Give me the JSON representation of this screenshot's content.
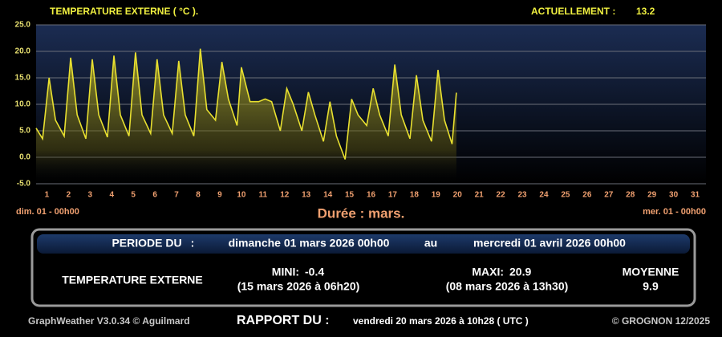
{
  "chart_data": {
    "type": "line",
    "title": "TEMPERATURE EXTERNE ( °C ).",
    "current_label": "ACTUELLEMENT :",
    "current_value": 13.2,
    "x_start_label": "dim. 01 - 00h00",
    "x_end_label": "mer. 01 - 00h00",
    "duration_label": "Durée : mars.",
    "xlim": [
      0,
      31
    ],
    "xticks": [
      {
        "value": 0.5,
        "label": "1"
      },
      {
        "value": 1.5,
        "label": "2"
      },
      {
        "value": 2.5,
        "label": "3"
      },
      {
        "value": 3.5,
        "label": "4"
      },
      {
        "value": 4.5,
        "label": "5"
      },
      {
        "value": 5.5,
        "label": "6"
      },
      {
        "value": 6.5,
        "label": "7"
      },
      {
        "value": 7.5,
        "label": "8"
      },
      {
        "value": 8.5,
        "label": "9"
      },
      {
        "value": 9.5,
        "label": "10"
      },
      {
        "value": 10.5,
        "label": "11"
      },
      {
        "value": 11.5,
        "label": "12"
      },
      {
        "value": 12.5,
        "label": "13"
      },
      {
        "value": 13.5,
        "label": "14"
      },
      {
        "value": 14.5,
        "label": "15"
      },
      {
        "value": 15.5,
        "label": "16"
      },
      {
        "value": 16.5,
        "label": "17"
      },
      {
        "value": 17.5,
        "label": "18"
      },
      {
        "value": 18.5,
        "label": "19"
      },
      {
        "value": 19.5,
        "label": "20"
      },
      {
        "value": 20.5,
        "label": "21"
      },
      {
        "value": 21.5,
        "label": "22"
      },
      {
        "value": 22.5,
        "label": "23"
      },
      {
        "value": 23.5,
        "label": "24"
      },
      {
        "value": 24.5,
        "label": "25"
      },
      {
        "value": 25.5,
        "label": "26"
      },
      {
        "value": 26.5,
        "label": "27"
      },
      {
        "value": 27.5,
        "label": "28"
      },
      {
        "value": 28.5,
        "label": "29"
      },
      {
        "value": 29.5,
        "label": "30"
      },
      {
        "value": 30.5,
        "label": "31"
      }
    ],
    "ylim": [
      -5,
      25
    ],
    "yticks": [
      {
        "value": -5,
        "label": "-5.0"
      },
      {
        "value": 0,
        "label": "0.0"
      },
      {
        "value": 5,
        "label": "5.0"
      },
      {
        "value": 10,
        "label": "10.0"
      },
      {
        "value": 15,
        "label": "15.0"
      },
      {
        "value": 20,
        "label": "20.0"
      },
      {
        "value": 25,
        "label": "25.0"
      }
    ],
    "grid": true,
    "series": [
      {
        "color": "#e8e030",
        "x": [
          0,
          0.3,
          0.6,
          0.9,
          1.3,
          1.6,
          1.9,
          2.3,
          2.6,
          2.9,
          3.3,
          3.6,
          3.9,
          4.3,
          4.6,
          4.9,
          5.3,
          5.6,
          5.9,
          6.3,
          6.6,
          6.9,
          7.3,
          7.6,
          7.9,
          8.3,
          8.6,
          8.9,
          9.3,
          9.5,
          9.9,
          10.3,
          10.6,
          10.9,
          11.3,
          11.6,
          11.9,
          12.3,
          12.6,
          12.9,
          13.3,
          13.6,
          13.9,
          14.3,
          14.6,
          14.9,
          15.3,
          15.6,
          15.9,
          16.3,
          16.6,
          16.9,
          17.3,
          17.6,
          17.9,
          18.3,
          18.6,
          18.9,
          19.25,
          19.45
        ],
        "values": [
          5.5,
          3.5,
          15,
          7,
          4,
          18.8,
          8,
          3.5,
          18.5,
          8,
          3.8,
          19.2,
          8,
          4,
          19.8,
          8,
          4.5,
          18.5,
          8,
          4.5,
          18.2,
          8,
          4,
          20.5,
          9,
          7,
          18,
          11,
          6,
          17,
          10.5,
          10.5,
          11,
          10.5,
          5,
          13,
          10,
          5,
          12.3,
          8,
          3,
          10.5,
          4,
          -0.4,
          11,
          8,
          6,
          13,
          8,
          4,
          17.5,
          8,
          3.5,
          15.5,
          7,
          3,
          16.5,
          7,
          2.5,
          12.2
        ]
      }
    ]
  },
  "panel": {
    "period_label": "PERIODE DU",
    "period_sep": ":",
    "period_start": "dimanche 01 mars 2026 00h00",
    "period_to": "au",
    "period_end": "mercredi 01 avril 2026 00h00",
    "sensor": "TEMPERATURE EXTERNE",
    "min_label": "MINI:",
    "min_value": -0.4,
    "min_date": "(15 mars 2026 à 06h20)",
    "max_label": "MAXI:",
    "max_value": 20.9,
    "max_date": "(08 mars 2026 à 13h30)",
    "avg_label": "MOYENNE",
    "avg_value": 9.9
  },
  "footer": {
    "software": "GraphWeather V3.0.34 © Aguilmard",
    "report_label": "RAPPORT DU :",
    "report_date": "vendredi 20 mars 2026 à 10h28 ( UTC )",
    "copyright": "© GROGNON 12/2025"
  }
}
